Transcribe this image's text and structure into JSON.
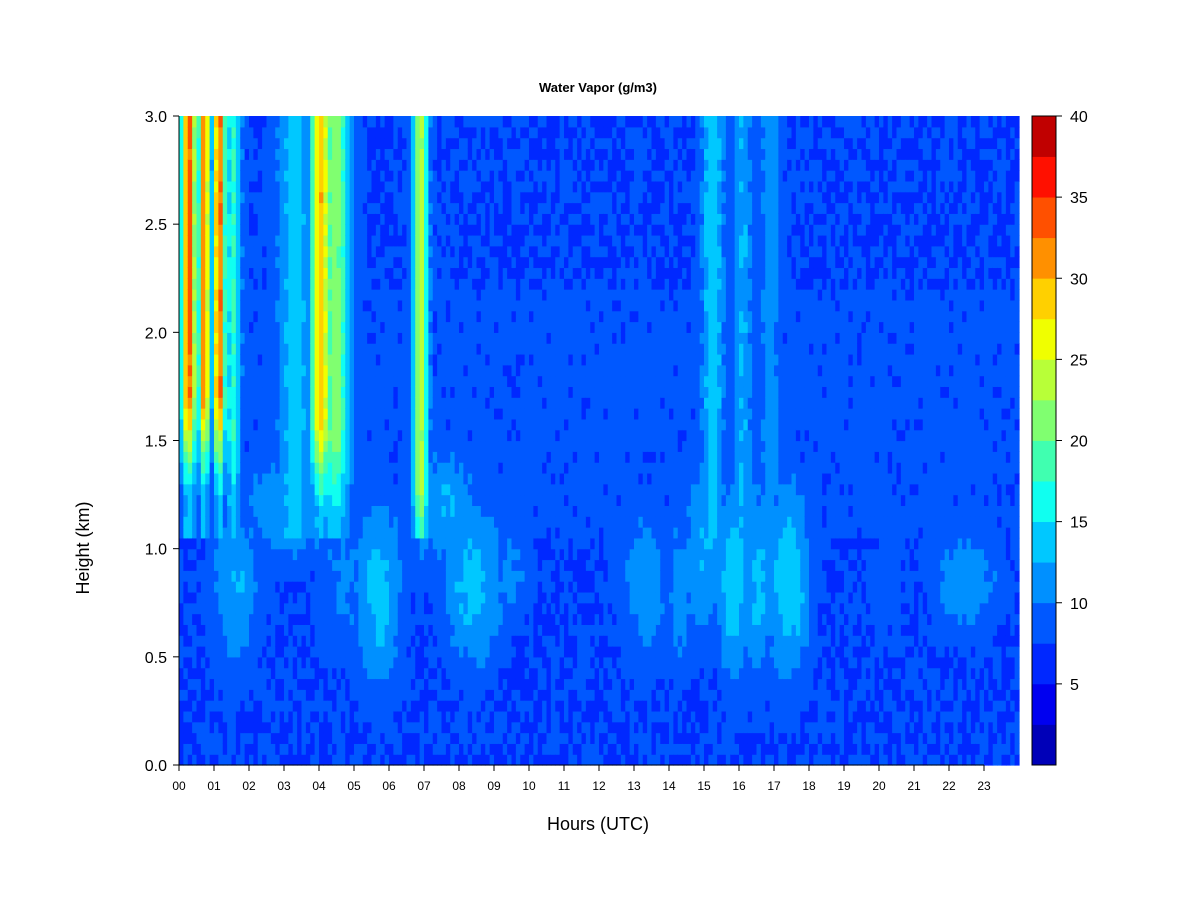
{
  "chart_data": {
    "type": "heatmap",
    "title": "Water Vapor (g/m3)",
    "xlabel": "Hours (UTC)",
    "ylabel": "Height (km)",
    "xlim": [
      0,
      24
    ],
    "ylim": [
      0.0,
      3.0
    ],
    "x_ticks": [
      "00",
      "01",
      "02",
      "03",
      "04",
      "05",
      "06",
      "07",
      "08",
      "09",
      "10",
      "11",
      "12",
      "13",
      "14",
      "15",
      "16",
      "17",
      "18",
      "19",
      "20",
      "21",
      "22",
      "23"
    ],
    "y_ticks": [
      "0.0",
      "0.5",
      "1.0",
      "1.5",
      "2.0",
      "2.5",
      "3.0"
    ],
    "colorbar": {
      "levels": [
        2.5,
        5,
        7.5,
        10,
        12.5,
        15,
        17.5,
        20,
        22.5,
        25,
        27.5,
        30,
        32.5,
        35,
        37.5,
        40
      ],
      "tick_labels": [
        "5",
        "10",
        "15",
        "20",
        "25",
        "30",
        "35",
        "40"
      ],
      "tick_values": [
        5,
        10,
        15,
        20,
        25,
        30,
        35,
        40
      ],
      "colors": [
        "#00007A",
        "#0000B8",
        "#0000F0",
        "#0028FF",
        "#0058FF",
        "#0090FF",
        "#00C8FF",
        "#10FFF0",
        "#40FFB0",
        "#80FF70",
        "#B8FF38",
        "#F0FF00",
        "#FFD000",
        "#FF9000",
        "#FF5000",
        "#FF1000",
        "#C00000",
        "#800000"
      ]
    },
    "grid": false,
    "legend": "colorbar-right",
    "hot_columns": [
      {
        "hour": 0.28,
        "width": 0.15,
        "peak": 36,
        "from_km": 1.7
      },
      {
        "hour": 0.72,
        "width": 0.12,
        "peak": 34,
        "from_km": 1.7
      },
      {
        "hour": 1.15,
        "width": 0.12,
        "peak": 36,
        "from_km": 1.7
      },
      {
        "hour": 1.55,
        "width": 0.15,
        "peak": 20,
        "from_km": 1.5
      },
      {
        "hour": 3.3,
        "width": 0.35,
        "peak": 16,
        "from_km": 1.4
      },
      {
        "hour": 4.05,
        "width": 0.2,
        "peak": 32,
        "from_km": 1.6
      },
      {
        "hour": 4.45,
        "width": 0.3,
        "peak": 24,
        "from_km": 1.5
      },
      {
        "hour": 6.9,
        "width": 0.15,
        "peak": 26,
        "from_km": 1.3
      },
      {
        "hour": 15.25,
        "width": 0.22,
        "peak": 17,
        "from_km": 1.6
      },
      {
        "hour": 16.1,
        "width": 0.2,
        "peak": 15,
        "from_km": 1.6
      },
      {
        "hour": 16.9,
        "width": 0.2,
        "peak": 14,
        "from_km": 1.6
      }
    ],
    "moist_blobs": [
      {
        "hour": 1.6,
        "km": 0.85,
        "width": 0.55,
        "height": 0.3,
        "peak": 15
      },
      {
        "hour": 3.2,
        "km": 1.2,
        "width": 1.0,
        "height": 0.2,
        "peak": 15
      },
      {
        "hour": 4.7,
        "km": 0.85,
        "width": 0.6,
        "height": 0.3,
        "peak": 13
      },
      {
        "hour": 5.7,
        "km": 0.8,
        "width": 0.55,
        "height": 0.35,
        "peak": 16
      },
      {
        "hour": 7.6,
        "km": 1.2,
        "width": 0.8,
        "height": 0.2,
        "peak": 15
      },
      {
        "hour": 8.4,
        "km": 0.85,
        "width": 0.7,
        "height": 0.3,
        "peak": 16
      },
      {
        "hour": 9.5,
        "km": 0.9,
        "width": 0.5,
        "height": 0.2,
        "peak": 13
      },
      {
        "hour": 13.3,
        "km": 0.85,
        "width": 0.6,
        "height": 0.3,
        "peak": 14
      },
      {
        "hour": 14.3,
        "km": 0.8,
        "width": 0.25,
        "height": 0.3,
        "peak": 14
      },
      {
        "hour": 15.0,
        "km": 1.0,
        "width": 0.5,
        "height": 0.35,
        "peak": 15
      },
      {
        "hour": 15.85,
        "km": 0.85,
        "width": 0.35,
        "height": 0.35,
        "peak": 17
      },
      {
        "hour": 16.55,
        "km": 0.85,
        "width": 0.3,
        "height": 0.35,
        "peak": 16
      },
      {
        "hour": 17.4,
        "km": 0.85,
        "width": 0.5,
        "height": 0.35,
        "peak": 17
      },
      {
        "hour": 20.2,
        "km": 0.85,
        "width": 0.5,
        "height": 0.25,
        "peak": 11
      },
      {
        "hour": 22.5,
        "km": 0.85,
        "width": 0.8,
        "height": 0.2,
        "peak": 14
      }
    ],
    "dry_regions": [
      {
        "from_hour": 8.3,
        "to_hour": 14.5,
        "above_km": 2.3,
        "value": 7
      },
      {
        "from_hour": 18.0,
        "to_hour": 24.0,
        "above_km": 2.6,
        "value": 5.5
      }
    ]
  }
}
